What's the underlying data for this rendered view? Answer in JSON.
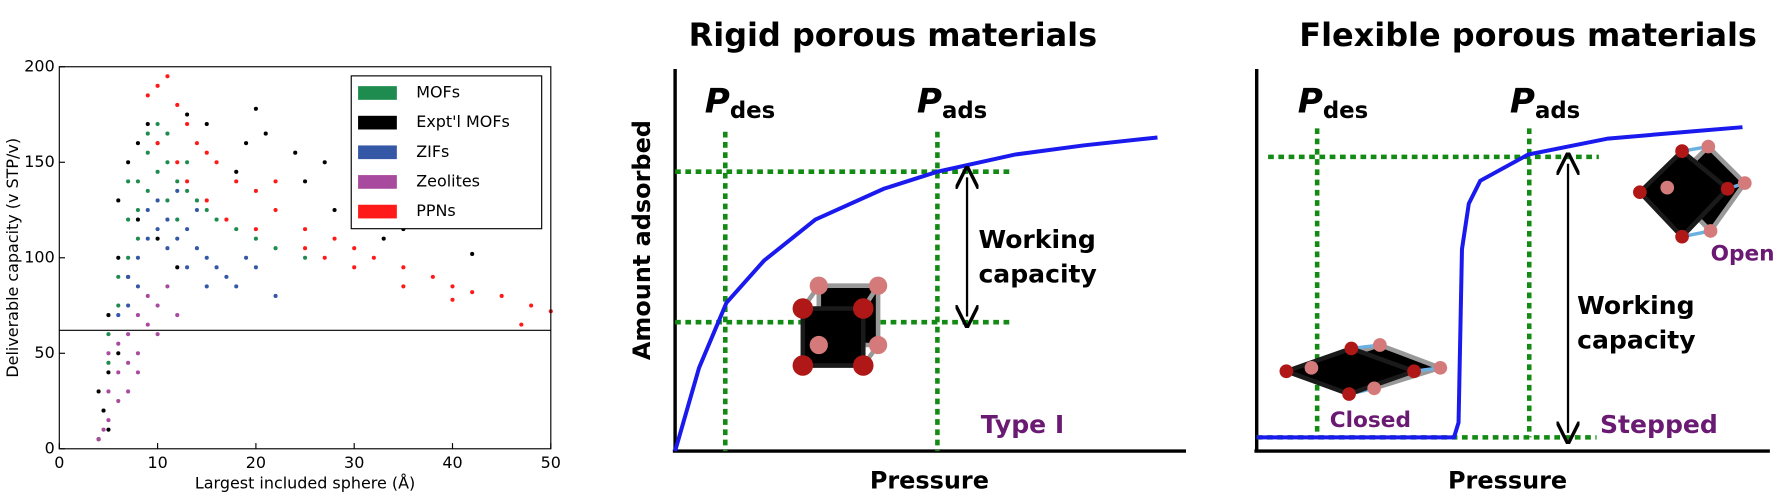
{
  "chart_data": {
    "type": "scatter",
    "x_label": "Largest included sphere (Å)",
    "y_label": "Deliverable capacity (v STP/v)",
    "xlim": [
      0,
      50
    ],
    "ylim": [
      0,
      200
    ],
    "xticks": [
      0,
      10,
      20,
      30,
      40,
      50
    ],
    "yticks": [
      0,
      50,
      100,
      150,
      200
    ],
    "legend": "upper right",
    "reference_line": 62,
    "series": [
      {
        "name": "MOFs",
        "color": "#1e8c4e",
        "x": [
          5,
          6,
          7,
          8,
          9,
          10,
          11,
          12,
          13,
          14,
          7,
          8,
          9,
          10,
          11,
          6,
          5,
          12,
          15,
          16,
          18,
          20,
          22,
          25,
          9,
          10,
          8,
          13,
          7,
          11
        ],
        "y": [
          60,
          90,
          120,
          140,
          155,
          160,
          150,
          140,
          135,
          130,
          100,
          125,
          135,
          145,
          130,
          75,
          45,
          120,
          125,
          120,
          115,
          110,
          105,
          100,
          165,
          170,
          110,
          150,
          140,
          165
        ]
      },
      {
        "name": "Expt'l MOFs",
        "color": "#000000",
        "x": [
          4,
          4.5,
          5,
          5,
          6,
          6,
          7,
          8,
          9,
          13,
          15,
          20,
          21,
          25,
          27,
          30,
          33,
          42,
          5,
          6,
          7,
          4,
          8,
          10,
          12,
          19,
          24,
          18,
          28,
          35
        ],
        "y": [
          5,
          20,
          40,
          70,
          100,
          130,
          150,
          160,
          170,
          175,
          170,
          178,
          165,
          140,
          150,
          130,
          110,
          102,
          10,
          50,
          90,
          30,
          120,
          110,
          95,
          160,
          155,
          145,
          125,
          115
        ]
      },
      {
        "name": "ZIFs",
        "color": "#3558a6",
        "x": [
          6,
          7,
          8,
          9,
          10,
          11,
          12,
          13,
          14,
          15,
          16,
          17,
          18,
          20,
          22,
          9,
          10,
          11,
          8,
          12,
          13,
          15,
          7,
          14,
          19
        ],
        "y": [
          70,
          90,
          100,
          110,
          115,
          120,
          110,
          115,
          105,
          100,
          95,
          90,
          85,
          95,
          80,
          125,
          130,
          105,
          85,
          135,
          95,
          85,
          75,
          125,
          100
        ]
      },
      {
        "name": "Zeolites",
        "color": "#a84a9e",
        "x": [
          4,
          5,
          5,
          6,
          6,
          7,
          7,
          8,
          8,
          9,
          9,
          10,
          11,
          12,
          6,
          5,
          7,
          8,
          10,
          4.5
        ],
        "y": [
          5,
          15,
          30,
          40,
          55,
          60,
          45,
          50,
          70,
          65,
          80,
          75,
          85,
          70,
          25,
          50,
          30,
          40,
          60,
          10
        ]
      },
      {
        "name": "PPNs",
        "color": "#ff1a1a",
        "x": [
          9,
          10,
          11,
          12,
          13,
          14,
          15,
          16,
          18,
          20,
          22,
          25,
          28,
          30,
          32,
          35,
          38,
          40,
          42,
          45,
          48,
          50,
          12,
          15,
          20,
          25,
          30,
          35,
          40,
          47,
          13,
          17,
          10,
          22,
          27
        ],
        "y": [
          185,
          190,
          195,
          180,
          170,
          160,
          155,
          150,
          140,
          135,
          125,
          115,
          110,
          105,
          100,
          95,
          90,
          85,
          82,
          80,
          75,
          72,
          150,
          130,
          115,
          105,
          95,
          85,
          78,
          65,
          140,
          120,
          160,
          140,
          100
        ]
      }
    ]
  },
  "panels": [
    {
      "title": "Rigid porous materials",
      "y_label": "Amount adsorbed",
      "x_label": "Pressure",
      "p_des": {
        "symbol": "P",
        "subscript": "des"
      },
      "p_ads": {
        "symbol": "P",
        "subscript": "ads"
      },
      "working_capacity": [
        "Working",
        "capacity"
      ],
      "isotherm_type": "Type I"
    },
    {
      "title": "Flexible porous materials",
      "x_label": "Pressure",
      "p_des": {
        "symbol": "P",
        "subscript": "des"
      },
      "p_ads": {
        "symbol": "P",
        "subscript": "ads"
      },
      "working_capacity": [
        "Working",
        "capacity"
      ],
      "isotherm_type": "Stepped",
      "closed_label": "Closed",
      "open_label": "Open"
    }
  ]
}
